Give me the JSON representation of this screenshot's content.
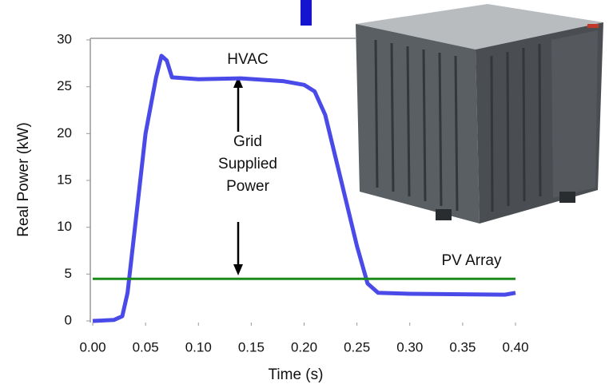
{
  "chart_data": {
    "type": "line",
    "x_label": "Time (s)",
    "y_label": "Real Power (kW)",
    "x": [
      0.0,
      0.02,
      0.028,
      0.033,
      0.04,
      0.05,
      0.06,
      0.065,
      0.07,
      0.075,
      0.1,
      0.14,
      0.18,
      0.2,
      0.21,
      0.22,
      0.235,
      0.25,
      0.26,
      0.27,
      0.3,
      0.39,
      0.4
    ],
    "series": [
      {
        "name": "HVAC",
        "color": "#4a4ae8",
        "values": [
          0,
          0.1,
          0.5,
          3,
          10,
          20,
          26,
          28.3,
          27.8,
          26,
          25.8,
          25.9,
          25.6,
          25.2,
          24.5,
          22,
          15,
          8,
          4,
          3,
          2.9,
          2.8,
          3
        ]
      },
      {
        "name": "PV Array",
        "color": "#1a8a1a",
        "values": [
          4.5,
          4.5,
          4.5,
          4.5,
          4.5,
          4.5,
          4.5,
          4.5,
          4.5,
          4.5,
          4.5,
          4.5,
          4.5,
          4.5,
          4.5,
          4.5,
          4.5,
          4.5,
          4.5,
          4.5,
          4.5,
          4.5,
          4.5
        ]
      }
    ],
    "annotation": "Grid Supplied Power",
    "xlim": [
      0,
      0.4
    ],
    "xticks": [
      {
        "value": 0,
        "label": "0.00"
      },
      {
        "value": 0.05,
        "label": "0.05"
      },
      {
        "value": 0.1,
        "label": "0.10"
      },
      {
        "value": 0.15,
        "label": "0.15"
      },
      {
        "value": 0.2,
        "label": "0.20"
      },
      {
        "value": 0.25,
        "label": "0.25"
      },
      {
        "value": 0.3,
        "label": "0.30"
      },
      {
        "value": 0.35,
        "label": "0.35"
      },
      {
        "value": 0.4,
        "label": "0.40"
      }
    ],
    "ylim": [
      0,
      30
    ],
    "yticks": [
      0,
      5,
      10,
      15,
      20,
      25,
      30
    ]
  }
}
